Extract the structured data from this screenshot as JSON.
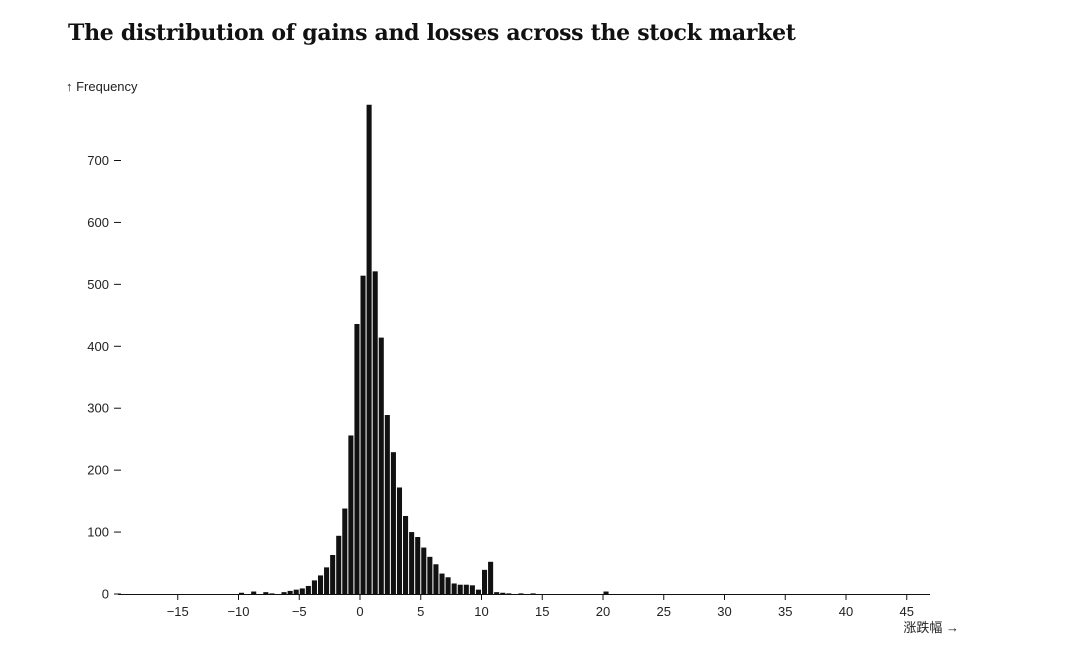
{
  "title": "The distribution of gains and losses across the stock market",
  "chart_data": {
    "type": "bar",
    "title": "The distribution of gains and losses across the stock market",
    "ylabel": "↑ Frequency",
    "xlabel": "涨跌幅 →",
    "bin_width": 0.5,
    "xlim": [
      -20,
      46
    ],
    "ylim": [
      0,
      790
    ],
    "x_ticks": [
      {
        "value": -15,
        "label": "−15"
      },
      {
        "value": -10,
        "label": "−10"
      },
      {
        "value": -5,
        "label": "−5"
      },
      {
        "value": 0,
        "label": "0"
      },
      {
        "value": 5,
        "label": "5"
      },
      {
        "value": 10,
        "label": "10"
      },
      {
        "value": 15,
        "label": "15"
      },
      {
        "value": 20,
        "label": "20"
      },
      {
        "value": 25,
        "label": "25"
      },
      {
        "value": 30,
        "label": "30"
      },
      {
        "value": 35,
        "label": "35"
      },
      {
        "value": 40,
        "label": "40"
      },
      {
        "value": 45,
        "label": "45"
      }
    ],
    "y_ticks": [
      {
        "value": 0,
        "label": "0"
      },
      {
        "value": 100,
        "label": "100"
      },
      {
        "value": 200,
        "label": "200"
      },
      {
        "value": 300,
        "label": "300"
      },
      {
        "value": 400,
        "label": "400"
      },
      {
        "value": 500,
        "label": "500"
      },
      {
        "value": 600,
        "label": "600"
      },
      {
        "value": 700,
        "label": "700"
      }
    ],
    "bins": [
      {
        "x0": -10,
        "x1": -9.5,
        "value": 2
      },
      {
        "x0": -9,
        "x1": -8.5,
        "value": 4
      },
      {
        "x0": -8,
        "x1": -7.5,
        "value": 3
      },
      {
        "x0": -7.5,
        "x1": -7,
        "value": 1
      },
      {
        "x0": -6.5,
        "x1": -6,
        "value": 3
      },
      {
        "x0": -6,
        "x1": -5.5,
        "value": 5
      },
      {
        "x0": -5.5,
        "x1": -5,
        "value": 7
      },
      {
        "x0": -5,
        "x1": -4.5,
        "value": 9
      },
      {
        "x0": -4.5,
        "x1": -4,
        "value": 13
      },
      {
        "x0": -4,
        "x1": -3.5,
        "value": 22
      },
      {
        "x0": -3.5,
        "x1": -3,
        "value": 30
      },
      {
        "x0": -3,
        "x1": -2.5,
        "value": 43
      },
      {
        "x0": -2.5,
        "x1": -2,
        "value": 63
      },
      {
        "x0": -2,
        "x1": -1.5,
        "value": 94
      },
      {
        "x0": -1.5,
        "x1": -1,
        "value": 138
      },
      {
        "x0": -1,
        "x1": -0.5,
        "value": 256
      },
      {
        "x0": -0.5,
        "x1": 0,
        "value": 436
      },
      {
        "x0": 0,
        "x1": 0.5,
        "value": 514
      },
      {
        "x0": 0.5,
        "x1": 1,
        "value": 790
      },
      {
        "x0": 1,
        "x1": 1.5,
        "value": 521
      },
      {
        "x0": 1.5,
        "x1": 2,
        "value": 414
      },
      {
        "x0": 2,
        "x1": 2.5,
        "value": 289
      },
      {
        "x0": 2.5,
        "x1": 3,
        "value": 229
      },
      {
        "x0": 3,
        "x1": 3.5,
        "value": 172
      },
      {
        "x0": 3.5,
        "x1": 4,
        "value": 126
      },
      {
        "x0": 4,
        "x1": 4.5,
        "value": 100
      },
      {
        "x0": 4.5,
        "x1": 5,
        "value": 92
      },
      {
        "x0": 5,
        "x1": 5.5,
        "value": 75
      },
      {
        "x0": 5.5,
        "x1": 6,
        "value": 60
      },
      {
        "x0": 6,
        "x1": 6.5,
        "value": 48
      },
      {
        "x0": 6.5,
        "x1": 7,
        "value": 33
      },
      {
        "x0": 7,
        "x1": 7.5,
        "value": 27
      },
      {
        "x0": 7.5,
        "x1": 8,
        "value": 17
      },
      {
        "x0": 8,
        "x1": 8.5,
        "value": 15
      },
      {
        "x0": 8.5,
        "x1": 9,
        "value": 15
      },
      {
        "x0": 9,
        "x1": 9.5,
        "value": 14
      },
      {
        "x0": 9.5,
        "x1": 10,
        "value": 7
      },
      {
        "x0": 10,
        "x1": 10.5,
        "value": 39
      },
      {
        "x0": 10.5,
        "x1": 11,
        "value": 52
      },
      {
        "x0": 11,
        "x1": 11.5,
        "value": 3
      },
      {
        "x0": 11.5,
        "x1": 12,
        "value": 2
      },
      {
        "x0": 12,
        "x1": 12.5,
        "value": 1
      },
      {
        "x0": 13,
        "x1": 13.5,
        "value": 1
      },
      {
        "x0": 14,
        "x1": 14.5,
        "value": 1
      },
      {
        "x0": 20,
        "x1": 20.5,
        "value": 4
      }
    ],
    "colors": {
      "bar": "#111111",
      "bar_outline": "#ffffff",
      "axis": "#111111",
      "text": "#222222"
    }
  }
}
